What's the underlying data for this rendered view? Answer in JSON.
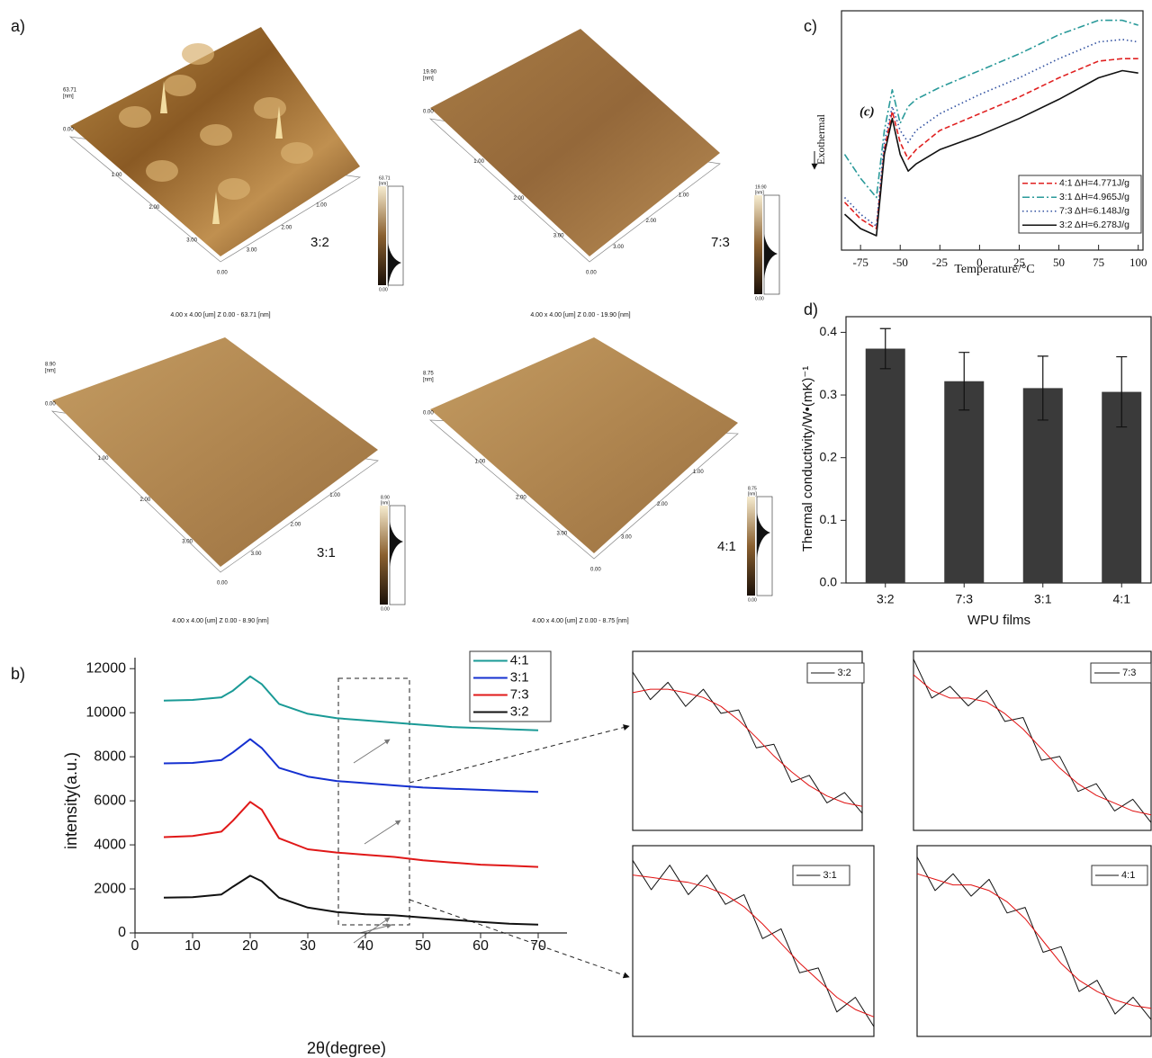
{
  "panel_labels": [
    "a)",
    "b)",
    "c)",
    "d)"
  ],
  "afm": {
    "axis_ticks": [
      "0.00",
      "1.00",
      "2.00",
      "3.00"
    ],
    "unit": "[nm]",
    "images": [
      {
        "label": "3:2",
        "zmax": "63.71",
        "caption": "4.00 x 4.00 [um]   Z 0.00 - 63.71 [nm]"
      },
      {
        "label": "7:3",
        "zmax": "19.90",
        "caption": "4.00 x 4.00 [um]   Z 0.00 - 19.90 [nm]"
      },
      {
        "label": "3:1",
        "zmax": "8.90",
        "caption": "4.00 x 4.00 [um]   Z 0.00 - 8.90 [nm]"
      },
      {
        "label": "4:1",
        "zmax": "8.75",
        "caption": "4.00 x 4.00 [um]   Z 0.00 - 8.75 [nm]"
      }
    ]
  },
  "chart_data": [
    {
      "type": "line",
      "x_label": "2θ(degree)",
      "y_label": "intensity(a.u.)",
      "x": [
        5,
        10,
        15,
        17,
        20,
        22,
        25,
        30,
        35,
        40,
        45,
        50,
        55,
        60,
        65,
        70
      ],
      "xlim": [
        0,
        75
      ],
      "ylim": [
        0,
        12500
      ],
      "xticks": [
        0,
        10,
        20,
        30,
        40,
        50,
        60,
        70
      ],
      "yticks": [
        0,
        2000,
        4000,
        6000,
        8000,
        10000,
        12000
      ],
      "legend": "upper right",
      "series": [
        {
          "name": "4:1",
          "color": "#1a9a96",
          "values": [
            10550,
            10580,
            10700,
            11000,
            11650,
            11300,
            10400,
            9950,
            9750,
            9650,
            9550,
            9450,
            9350,
            9300,
            9250,
            9200
          ]
        },
        {
          "name": "3:1",
          "color": "#1530d0",
          "values": [
            7700,
            7720,
            7850,
            8200,
            8800,
            8400,
            7500,
            7100,
            6900,
            6800,
            6700,
            6600,
            6550,
            6500,
            6450,
            6400
          ]
        },
        {
          "name": "7:3",
          "color": "#e01818",
          "values": [
            4350,
            4400,
            4600,
            5100,
            5950,
            5600,
            4300,
            3800,
            3650,
            3550,
            3450,
            3300,
            3200,
            3100,
            3050,
            3000
          ]
        },
        {
          "name": "3:2",
          "color": "#111111",
          "values": [
            1600,
            1620,
            1750,
            2100,
            2600,
            2350,
            1600,
            1150,
            950,
            850,
            800,
            700,
            600,
            500,
            420,
            380
          ]
        }
      ]
    },
    {
      "type": "line",
      "x": [
        35,
        36,
        37,
        38,
        39,
        40,
        41,
        42,
        43,
        44,
        45,
        46,
        47,
        48
      ],
      "xlim": [
        35,
        48
      ],
      "ylim": [
        700,
        960
      ],
      "series": [
        {
          "name": "3:2",
          "color": "#111111",
          "values": [
            930,
            890,
            915,
            880,
            905,
            870,
            875,
            820,
            825,
            770,
            780,
            740,
            755,
            725
          ]
        },
        {
          "color": "#e01010",
          "values": [
            900,
            905,
            905,
            900,
            893,
            880,
            860,
            835,
            808,
            785,
            765,
            750,
            740,
            735
          ]
        }
      ]
    },
    {
      "type": "line",
      "x": [
        35,
        36,
        37,
        38,
        39,
        40,
        41,
        42,
        43,
        44,
        45,
        46,
        47,
        48
      ],
      "xlim": [
        35,
        48
      ],
      "ylim": [
        3320,
        3780
      ],
      "series": [
        {
          "name": "7:3",
          "color": "#111111",
          "values": [
            3760,
            3660,
            3690,
            3640,
            3680,
            3600,
            3610,
            3500,
            3510,
            3420,
            3440,
            3370,
            3400,
            3340
          ]
        },
        {
          "color": "#e01010",
          "values": [
            3720,
            3680,
            3660,
            3660,
            3650,
            3620,
            3580,
            3530,
            3480,
            3440,
            3410,
            3390,
            3370,
            3360
          ]
        }
      ]
    },
    {
      "type": "line",
      "x": [
        35,
        36,
        37,
        38,
        39,
        40,
        41,
        42,
        43,
        44,
        45,
        46,
        47,
        48
      ],
      "xlim": [
        35,
        48
      ],
      "ylim": [
        6570,
        6960
      ],
      "series": [
        {
          "name": "3:1",
          "color": "#111111",
          "values": [
            6930,
            6870,
            6920,
            6860,
            6900,
            6840,
            6860,
            6770,
            6790,
            6700,
            6710,
            6620,
            6650,
            6590
          ]
        },
        {
          "color": "#e01010",
          "values": [
            6900,
            6895,
            6890,
            6885,
            6875,
            6860,
            6835,
            6800,
            6760,
            6720,
            6685,
            6650,
            6625,
            6610
          ]
        }
      ]
    },
    {
      "type": "line",
      "x": [
        35,
        36,
        37,
        38,
        39,
        40,
        41,
        42,
        43,
        44,
        45,
        46,
        47,
        48
      ],
      "xlim": [
        35,
        48
      ],
      "ylim": [
        9430,
        9770
      ],
      "series": [
        {
          "name": "4:1",
          "color": "#111111",
          "values": [
            9750,
            9690,
            9720,
            9680,
            9710,
            9650,
            9660,
            9580,
            9590,
            9510,
            9530,
            9470,
            9500,
            9460
          ]
        },
        {
          "color": "#e01010",
          "values": [
            9720,
            9710,
            9700,
            9700,
            9690,
            9670,
            9640,
            9600,
            9560,
            9530,
            9510,
            9495,
            9485,
            9480
          ]
        }
      ]
    },
    {
      "type": "line",
      "x_label": "Temperature/°C",
      "y_label": "Exothermal",
      "annotation": "(c)",
      "x": [
        -85,
        -75,
        -65,
        -60,
        -55,
        -50,
        -45,
        -40,
        -25,
        0,
        25,
        50,
        75,
        90,
        100
      ],
      "xlim": [
        -87,
        103
      ],
      "ylim": [
        0,
        100
      ],
      "xticks": [
        -75,
        -50,
        -25,
        0,
        25,
        50,
        75,
        100
      ],
      "legend": "lower right",
      "series": [
        {
          "name": "4:1 ΔH=4.771J/g",
          "color": "#e02020",
          "linestyle": "dashed",
          "values": [
            20,
            13,
            9,
            42,
            58,
            45,
            38,
            42,
            50,
            57,
            64,
            72,
            79,
            80,
            80
          ]
        },
        {
          "name": "3:1 ΔH=4.965J/g",
          "color": "#2a9a9a",
          "linestyle": "dashdot",
          "values": [
            40,
            30,
            22,
            50,
            67,
            53,
            60,
            63,
            68,
            75,
            82,
            90,
            96,
            96,
            94
          ]
        },
        {
          "name": "7:3 ΔH=6.148J/g",
          "color": "#3050a0",
          "linestyle": "dotted",
          "values": [
            22,
            15,
            10,
            45,
            60,
            50,
            45,
            50,
            57,
            65,
            72,
            80,
            87,
            88,
            87
          ]
        },
        {
          "name": "3:2 ΔH=6.278J/g",
          "color": "#111111",
          "linestyle": "solid",
          "values": [
            15,
            9,
            6,
            40,
            55,
            40,
            33,
            36,
            42,
            48,
            55,
            63,
            72,
            75,
            74
          ]
        }
      ]
    },
    {
      "type": "bar",
      "x_label": "WPU films",
      "y_label": "Thermal conductivity/W•(mK)⁻¹",
      "categories": [
        "3:2",
        "7:3",
        "3:1",
        "4:1"
      ],
      "values": [
        0.374,
        0.322,
        0.311,
        0.305
      ],
      "errors": [
        0.032,
        0.046,
        0.051,
        0.056
      ],
      "color": "#3a3a3a",
      "ylim": [
        0,
        0.425
      ],
      "yticks": [
        {
          "value": 0,
          "label": "0.0"
        },
        0.1,
        0.2,
        0.3,
        0.4
      ]
    }
  ]
}
